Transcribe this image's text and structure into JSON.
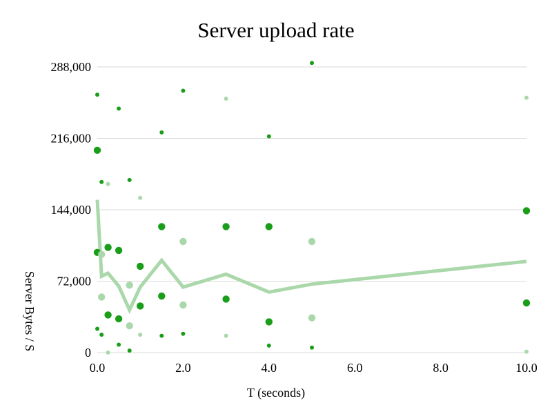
{
  "chart_data": {
    "type": "scatter",
    "title": "Server upload rate",
    "xlabel": "T (seconds)",
    "ylabel": "Server Bytes / S",
    "xlim": [
      0,
      10
    ],
    "ylim": [
      0,
      288000
    ],
    "x_ticks": [
      0,
      2,
      4,
      6,
      8,
      10
    ],
    "x_tick_labels": [
      "0.0",
      "2.0",
      "4.0",
      "6.0",
      "8.0",
      "10.0"
    ],
    "y_ticks": [
      0,
      72000,
      144000,
      216000,
      288000
    ],
    "y_tick_labels": [
      "0",
      "72,000",
      "144,000",
      "216,000",
      "288,000"
    ],
    "grid": "horizontal",
    "legend": "none",
    "colors": {
      "dark_green": "#1a9e1a",
      "light_green": "#aad8aa",
      "trend_line": "#aad8aa",
      "grid": "#d9d9d9"
    },
    "series": [
      {
        "marker": "large-dark",
        "points": [
          [
            0,
            204000
          ],
          [
            0,
            101000
          ],
          [
            0.25,
            106000
          ],
          [
            0.5,
            103000
          ],
          [
            0.25,
            38000
          ],
          [
            0.5,
            34000
          ],
          [
            1.0,
            87000
          ],
          [
            1.0,
            47000
          ],
          [
            1.5,
            127000
          ],
          [
            1.5,
            57000
          ],
          [
            3.0,
            127000
          ],
          [
            3.0,
            54000
          ],
          [
            4.0,
            127000
          ],
          [
            4.0,
            31000
          ],
          [
            10.0,
            143000
          ],
          [
            10.0,
            50000
          ]
        ]
      },
      {
        "marker": "large-light",
        "points": [
          [
            0.1,
            99000
          ],
          [
            0.1,
            56000
          ],
          [
            0.75,
            68000
          ],
          [
            0.75,
            27000
          ],
          [
            2.0,
            112000
          ],
          [
            2.0,
            48000
          ],
          [
            5.0,
            112000
          ],
          [
            5.0,
            35000
          ]
        ]
      },
      {
        "marker": "small-dark",
        "points": [
          [
            0,
            260000
          ],
          [
            0,
            24000
          ],
          [
            0.1,
            172000
          ],
          [
            0.1,
            18000
          ],
          [
            0.5,
            246000
          ],
          [
            0.5,
            8000
          ],
          [
            0.75,
            174000
          ],
          [
            0.75,
            2000
          ],
          [
            1.5,
            222000
          ],
          [
            1.5,
            17000
          ],
          [
            2.0,
            264000
          ],
          [
            2.0,
            19000
          ],
          [
            4.0,
            218000
          ],
          [
            4.0,
            7000
          ],
          [
            5.0,
            292000
          ],
          [
            5.0,
            5000
          ]
        ]
      },
      {
        "marker": "small-light",
        "points": [
          [
            0.25,
            170000
          ],
          [
            0.25,
            0
          ],
          [
            1.0,
            156000
          ],
          [
            1.0,
            18000
          ],
          [
            3.0,
            256000
          ],
          [
            3.0,
            17000
          ],
          [
            10.0,
            257000
          ],
          [
            10.0,
            1000
          ]
        ]
      },
      {
        "marker": "line",
        "points": [
          [
            0,
            154000
          ],
          [
            0.1,
            77000
          ],
          [
            0.25,
            80000
          ],
          [
            0.5,
            67000
          ],
          [
            0.75,
            43000
          ],
          [
            1.0,
            66000
          ],
          [
            1.5,
            93000
          ],
          [
            2.0,
            66000
          ],
          [
            3.0,
            79000
          ],
          [
            4.0,
            61000
          ],
          [
            5.0,
            69000
          ],
          [
            10.0,
            92000
          ]
        ]
      }
    ]
  }
}
